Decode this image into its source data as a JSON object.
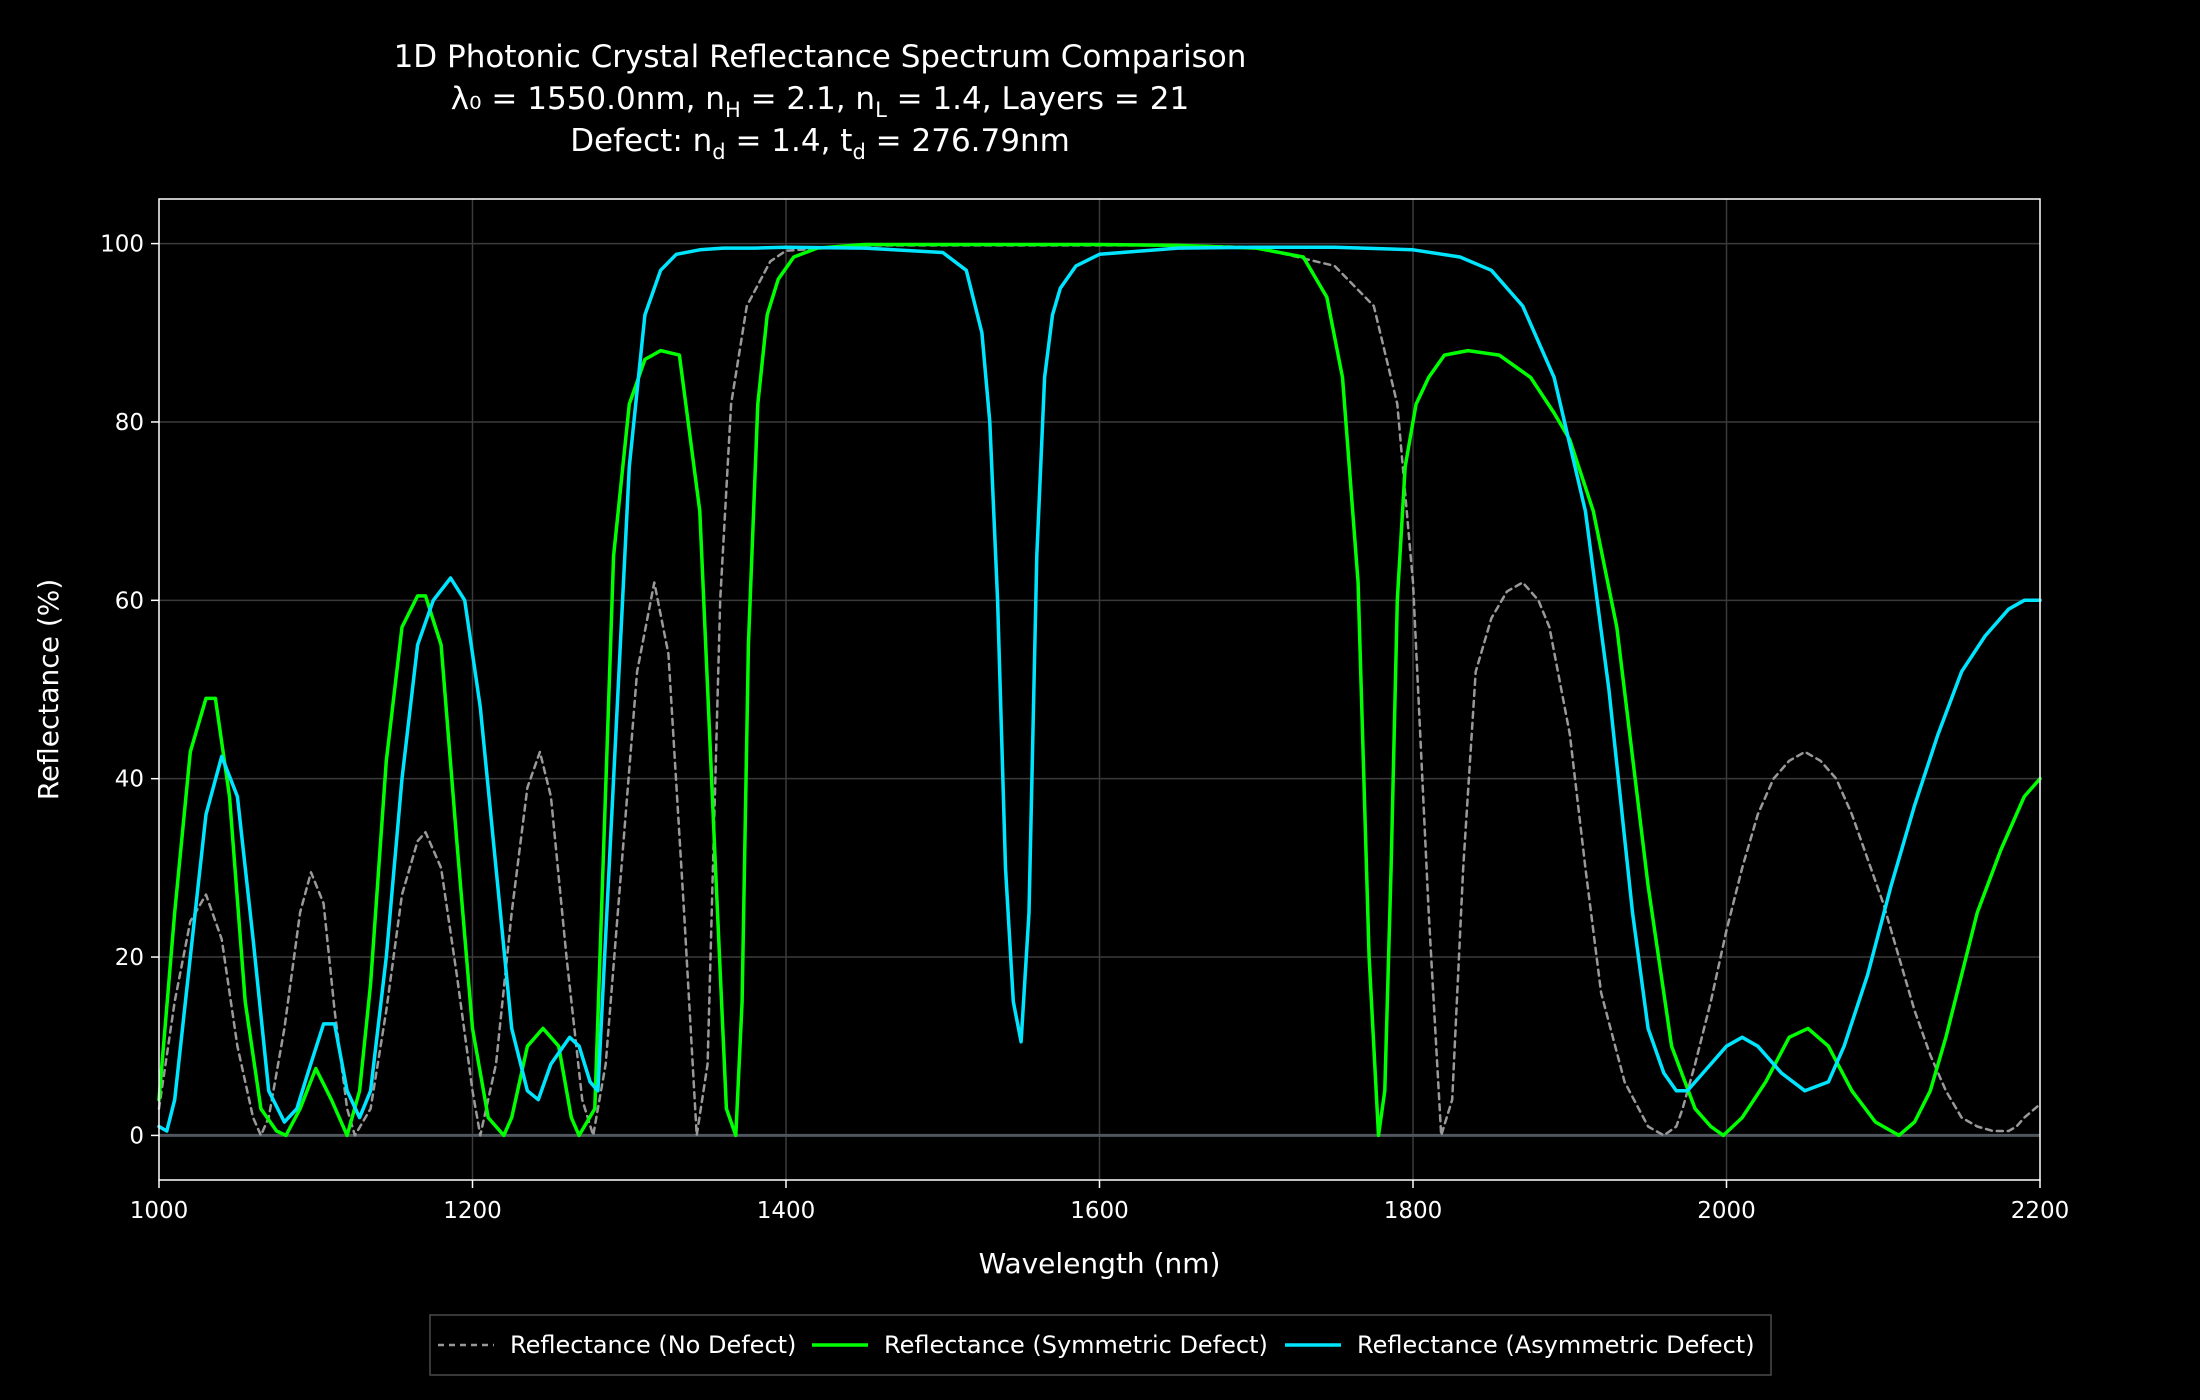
{
  "chart_data": {
    "type": "line",
    "title_lines": [
      "1D Photonic Crystal Reflectance Spectrum Comparison",
      "λ₀ = 1550.0nm, n_H = 2.1, n_L = 1.4, Layers = 21",
      "Defect: n_d = 1.4, t_d = 276.79nm"
    ],
    "title_parts": {
      "line2": [
        "λ₀ = 1550.0nm, n",
        "H",
        " = 2.1, n",
        "L",
        " = 1.4, Layers = 21"
      ],
      "line3": [
        "Defect: n",
        "d",
        " = 1.4, t",
        "d",
        " = 276.79nm"
      ]
    },
    "xlabel": "Wavelength (nm)",
    "ylabel": "Reflectance (%)",
    "xlim": [
      1000,
      2200
    ],
    "ylim": [
      -5,
      105
    ],
    "xticks": [
      1000,
      1200,
      1400,
      1600,
      1800,
      2000,
      2200
    ],
    "yticks": [
      0,
      20,
      40,
      60,
      80,
      100
    ],
    "grid": true,
    "legend_position": "bottom-center",
    "series": [
      {
        "name": "Reflectance (No Defect)",
        "color": "#999999",
        "dash": true,
        "x": [
          1000,
          1010,
          1020,
          1030,
          1040,
          1050,
          1060,
          1065,
          1070,
          1080,
          1090,
          1097,
          1105,
          1112,
          1120,
          1125,
          1135,
          1145,
          1155,
          1165,
          1170,
          1180,
          1190,
          1200,
          1205,
          1215,
          1225,
          1235,
          1243,
          1250,
          1260,
          1270,
          1277,
          1285,
          1295,
          1305,
          1316,
          1325,
          1335,
          1343,
          1350,
          1358,
          1365,
          1375,
          1390,
          1400,
          1450,
          1500,
          1550,
          1600,
          1650,
          1700,
          1750,
          1775,
          1790,
          1800,
          1810,
          1818,
          1825,
          1832,
          1840,
          1850,
          1860,
          1870,
          1880,
          1887,
          1900,
          1910,
          1920,
          1935,
          1950,
          1960,
          1968,
          1972,
          1980,
          1990,
          2000,
          2010,
          2020,
          2030,
          2040,
          2050,
          2060,
          2070,
          2080,
          2090,
          2100,
          2110,
          2120,
          2130,
          2140,
          2150,
          2160,
          2170,
          2180,
          2185,
          2190,
          2200
        ],
        "y": [
          3,
          15,
          24,
          27,
          22,
          10,
          2,
          0,
          2,
          12,
          25,
          29.5,
          26,
          14,
          3,
          0,
          3,
          14,
          27,
          33,
          34,
          30,
          18,
          5,
          0,
          8,
          25,
          39,
          43,
          38,
          20,
          4,
          0,
          8,
          30,
          52,
          62,
          54,
          25,
          0,
          8,
          60,
          82,
          93,
          98,
          99.2,
          99.8,
          99.8,
          99.8,
          99.8,
          99.8,
          99.6,
          97.5,
          93,
          82,
          62,
          25,
          0,
          4,
          30,
          52,
          58,
          61,
          62,
          60,
          57,
          45,
          30,
          16,
          6,
          1,
          0,
          1,
          3,
          8,
          15,
          23,
          30,
          36,
          40,
          42,
          43,
          42,
          40,
          36,
          31,
          26,
          20,
          14,
          9,
          5,
          2,
          1,
          0.5,
          0.5,
          1,
          2,
          3.5
        ]
      },
      {
        "name": "Reflectance (Symmetric Defect)",
        "color": "#00ff00",
        "dash": false,
        "x": [
          1000,
          1010,
          1020,
          1030,
          1036,
          1045,
          1055,
          1065,
          1075,
          1081,
          1090,
          1100,
          1110,
          1120,
          1128,
          1135,
          1145,
          1155,
          1165,
          1170,
          1180,
          1190,
          1200,
          1210,
          1220,
          1225,
          1235,
          1245,
          1255,
          1263,
          1268,
          1278,
          1290,
          1300,
          1310,
          1320,
          1332,
          1345,
          1355,
          1362,
          1368,
          1372,
          1376,
          1382,
          1388,
          1395,
          1405,
          1420,
          1450,
          1500,
          1550,
          1600,
          1650,
          1700,
          1730,
          1745,
          1755,
          1765,
          1772,
          1778,
          1782,
          1786,
          1790,
          1795,
          1802,
          1810,
          1820,
          1835,
          1855,
          1875,
          1890,
          1900,
          1915,
          1930,
          1950,
          1965,
          1980,
          1990,
          1998,
          2010,
          2025,
          2040,
          2052,
          2065,
          2080,
          2095,
          2110,
          2120,
          2130,
          2140,
          2150,
          2160,
          2175,
          2190,
          2200
        ],
        "y": [
          4,
          25,
          43,
          49,
          49,
          38,
          15,
          3,
          0.5,
          0,
          3,
          7.5,
          4,
          0,
          5,
          17,
          42,
          57,
          60.5,
          60.5,
          55,
          33,
          12,
          2,
          0,
          2,
          10,
          12,
          10,
          2,
          0,
          3,
          65,
          82,
          87,
          88,
          87.5,
          70,
          30,
          3,
          0,
          15,
          55,
          82,
          92,
          96,
          98.5,
          99.5,
          99.9,
          99.9,
          99.9,
          99.9,
          99.8,
          99.5,
          98.5,
          94,
          85,
          62,
          20,
          0,
          5,
          30,
          60,
          75,
          82,
          85,
          87.5,
          88,
          87.5,
          85,
          81,
          78,
          70,
          57,
          28,
          10,
          3,
          1,
          0,
          2,
          6,
          11,
          12,
          10,
          5,
          1.5,
          0,
          1.5,
          5,
          11,
          18,
          25,
          32,
          38,
          40
        ]
      },
      {
        "name": "Reflectance (Asymmetric Defect)",
        "color": "#00e5ff",
        "dash": false,
        "x": [
          1000,
          1005,
          1010,
          1020,
          1030,
          1040,
          1050,
          1060,
          1070,
          1080,
          1088,
          1095,
          1105,
          1112,
          1120,
          1128,
          1135,
          1145,
          1155,
          1165,
          1175,
          1186,
          1195,
          1205,
          1215,
          1225,
          1235,
          1242,
          1250,
          1262,
          1268,
          1275,
          1280,
          1290,
          1300,
          1310,
          1320,
          1330,
          1345,
          1360,
          1380,
          1400,
          1450,
          1500,
          1515,
          1525,
          1530,
          1535,
          1540,
          1545,
          1550,
          1555,
          1560,
          1565,
          1570,
          1575,
          1585,
          1600,
          1650,
          1700,
          1750,
          1800,
          1830,
          1850,
          1870,
          1890,
          1910,
          1925,
          1940,
          1950,
          1960,
          1968,
          1975,
          1985,
          2000,
          2010,
          2020,
          2035,
          2050,
          2065,
          2075,
          2090,
          2105,
          2120,
          2135,
          2150,
          2165,
          2180,
          2190,
          2200
        ],
        "y": [
          1,
          0.5,
          4,
          20,
          36,
          42.5,
          38,
          22,
          5,
          1.5,
          3,
          7,
          12.5,
          12.5,
          5,
          2,
          5,
          20,
          40,
          55,
          60,
          62.5,
          60,
          48,
          30,
          12,
          5,
          4,
          8,
          11,
          10,
          6,
          5,
          40,
          75,
          92,
          97,
          98.8,
          99.3,
          99.5,
          99.5,
          99.6,
          99.5,
          99,
          97,
          90,
          80,
          60,
          30,
          15,
          10.5,
          25,
          65,
          85,
          92,
          95,
          97.5,
          98.8,
          99.5,
          99.6,
          99.6,
          99.3,
          98.5,
          97,
          93,
          85,
          70,
          50,
          25,
          12,
          7,
          5,
          5,
          7,
          10,
          11,
          10,
          7,
          5,
          6,
          10,
          18,
          28,
          37,
          45,
          52,
          56,
          59,
          60,
          60
        ]
      }
    ]
  }
}
